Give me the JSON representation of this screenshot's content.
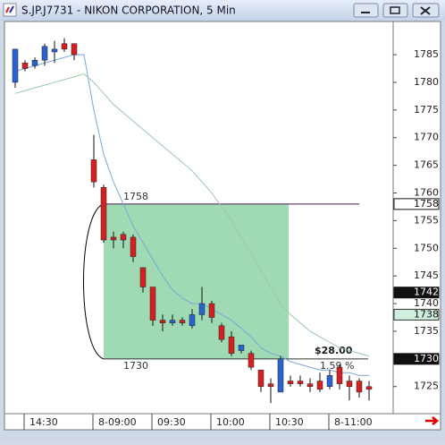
{
  "chart_data": {
    "type": "candlestick",
    "title": "S.JP.J7731 - NIKON CORPORATION, 5 Min",
    "categories": [
      null,
      "14:30",
      null,
      null,
      null,
      null,
      null,
      null,
      "8-09:00",
      null,
      null,
      null,
      null,
      null,
      "09:30",
      null,
      null,
      null,
      null,
      null,
      "10:00",
      null,
      null,
      null,
      null,
      null,
      "10:30",
      null,
      null,
      null,
      null,
      null,
      "8-11:00",
      null,
      null,
      null,
      null
    ],
    "open": [
      1780,
      1783.5,
      1783,
      1784,
      1785.5,
      1787,
      1787,
      null,
      1766,
      1761,
      1752,
      1752.5,
      1752,
      1746.5,
      1743,
      1737,
      1736.5,
      1737,
      1736,
      1738,
      1740,
      1736,
      1734,
      1731.5,
      1731,
      1728,
      1725.5,
      1724,
      1726,
      1726,
      1725.5,
      1726,
      1725,
      1728.5,
      1726,
      1726,
      1725
    ],
    "high": [
      1786,
      1784,
      1784.5,
      1787,
      1787.5,
      1788,
      1787,
      null,
      1770.5,
      1761.5,
      1753,
      1753,
      1752.5,
      1746.5,
      1743,
      1738,
      1738,
      1737.5,
      1739,
      1743,
      1740.5,
      1736.5,
      1735,
      1732.5,
      1731.5,
      1728,
      1726.5,
      1730.5,
      1727,
      1727,
      1726.5,
      1727.5,
      1728,
      1729,
      1727,
      1726.5,
      1726
    ],
    "low": [
      1779,
      1782,
      1782.5,
      1783,
      1783.5,
      1785.5,
      1784,
      null,
      1761,
      1751,
      1750,
      1750,
      1747.5,
      1742,
      1736,
      1735,
      1736,
      1736,
      1735.5,
      1737,
      1736.5,
      1733,
      1730.5,
      1731,
      1728,
      1724,
      1722,
      1724,
      1725,
      1725,
      1724,
      1724,
      1724.5,
      1724.5,
      1722.5,
      1723,
      1722.5
    ],
    "close": [
      1786,
      1782.5,
      1784,
      1786.5,
      1786,
      1786,
      1785,
      null,
      1762,
      1751.5,
      1751.5,
      1751.5,
      1748.5,
      1743,
      1737,
      1736.5,
      1737,
      1736.5,
      1738,
      1740,
      1737.5,
      1733.5,
      1731,
      1732.5,
      1728.5,
      1725,
      1725,
      1730,
      1725.5,
      1725.5,
      1725,
      1724.5,
      1727,
      1725.5,
      1725,
      1724,
      1724.5
    ],
    "up_color": "#2a63d0",
    "down_color": "#d42020",
    "overlays": [
      {
        "color": "#7aa6d8",
        "values": [
          1782,
          1782.5,
          1783,
          1783.5,
          1784,
          1784.5,
          1785,
          1785,
          1775,
          1767,
          1762,
          1758,
          1754,
          1751,
          1748,
          1745,
          1742.5,
          1741,
          1740,
          1740,
          1739,
          1738,
          1737,
          1735.5,
          1734,
          1732,
          1731,
          1730.5,
          1729.5,
          1729,
          1728.5,
          1728,
          1728,
          1727.5,
          1727.5,
          1727,
          1727
        ]
      },
      {
        "color": "#9cc8a8",
        "values": [
          1778,
          1778.5,
          1779,
          1779.5,
          1780,
          1780.5,
          1781,
          1781.5,
          1780,
          1778,
          1776,
          1774.5,
          1773,
          1771.5,
          1770,
          1768.5,
          1767,
          1765.5,
          1764,
          1762,
          1760,
          1757.5,
          1755,
          1752,
          1749,
          1746,
          1743,
          1740,
          1738,
          1736.5,
          1735,
          1734,
          1733,
          1732,
          1731.5,
          1731,
          1730.5
        ]
      }
    ],
    "zone": {
      "top": 1758,
      "bottom": 1730,
      "start": 9,
      "end": 28,
      "color": "#8fd4a8"
    },
    "measure_labels": [
      "$28.00",
      "1.59 %"
    ],
    "price_markers": [
      {
        "value": 1758,
        "style": "outline"
      },
      {
        "value": 1742,
        "style": "dark"
      },
      {
        "value": 1738,
        "style": "green"
      },
      {
        "value": 1730,
        "style": "dark"
      }
    ],
    "ylim": [
      1720.1,
      1791
    ],
    "yticks": [
      1725,
      1730,
      1735,
      1740,
      1745,
      1750,
      1755,
      1760,
      1765,
      1770,
      1775,
      1780,
      1785
    ]
  }
}
